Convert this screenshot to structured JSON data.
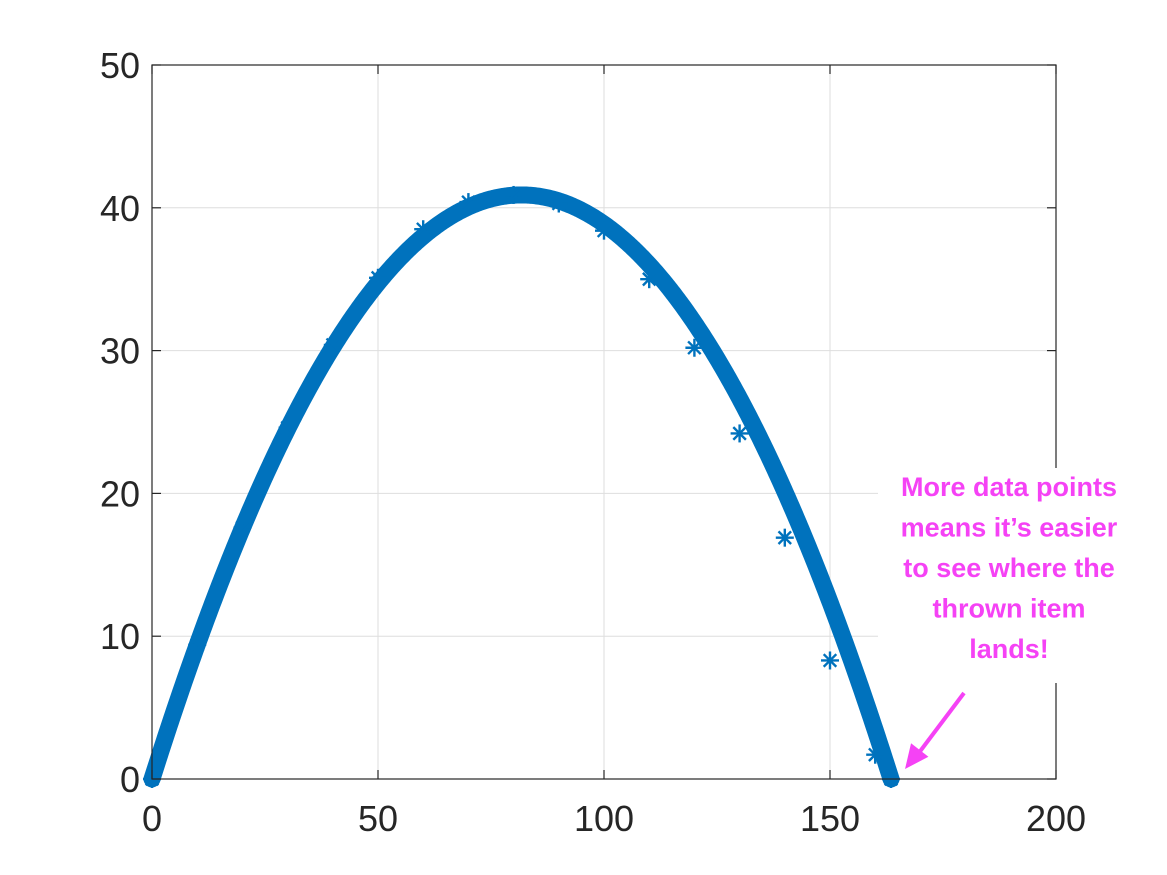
{
  "chart_data": {
    "type": "scatter",
    "title": "",
    "xlabel": "",
    "ylabel": "",
    "xlim": [
      0,
      200
    ],
    "ylim": [
      0,
      50
    ],
    "x_ticks": [
      0,
      50,
      100,
      150,
      200
    ],
    "y_ticks": [
      0,
      10,
      20,
      30,
      40,
      50
    ],
    "x_tick_labels": [
      "0",
      "50",
      "100",
      "150",
      "200"
    ],
    "y_tick_labels": [
      "0",
      "10",
      "20",
      "30",
      "40",
      "50"
    ],
    "grid": true,
    "series": [
      {
        "color": "#0072bd",
        "marker": "*",
        "x_start": 0,
        "x_end": 163.5,
        "peak_x": 81.75,
        "peak_y": 40.9,
        "x": [
          0,
          10,
          20,
          30,
          40,
          50,
          60,
          70,
          80,
          90,
          100,
          110,
          120,
          130,
          140,
          150,
          160,
          163.5
        ],
        "y": [
          0,
          9.4,
          17.6,
          24.6,
          30.4,
          35.1,
          38.5,
          40.4,
          40.9,
          40.3,
          38.4,
          35.0,
          30.2,
          24.2,
          16.9,
          8.3,
          1.7,
          0
        ]
      }
    ],
    "annotation": {
      "lines": [
        "More data points",
        "means it’s easier",
        "to see where the",
        "thrown item",
        "lands!"
      ],
      "color": "#f542f5",
      "arrow_target": [
        163.5,
        0
      ]
    }
  }
}
